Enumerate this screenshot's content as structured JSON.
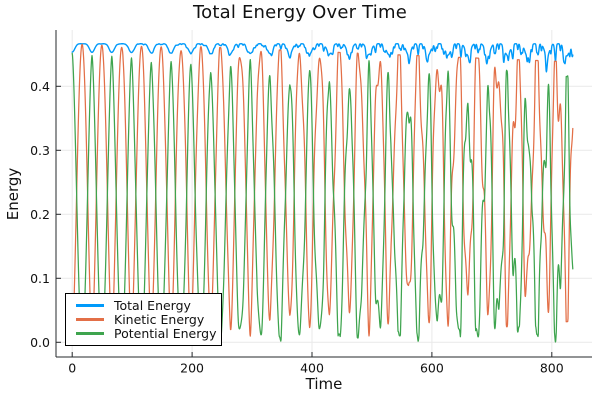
{
  "page": {
    "background": "#ffffff"
  },
  "chart_data": {
    "type": "line",
    "title": "Total Energy Over Time",
    "xlabel": "Time",
    "ylabel": "Energy",
    "xlim": [
      -27,
      867
    ],
    "ylim": [
      -0.023,
      0.488
    ],
    "xtick_labels": [
      "0",
      "200",
      "400",
      "600",
      "800"
    ],
    "xtick_values": [
      0,
      200,
      400,
      600,
      800
    ],
    "ytick_labels": [
      "0.0",
      "0.1",
      "0.2",
      "0.3",
      "0.4"
    ],
    "ytick_values": [
      0,
      0.1,
      0.2,
      0.3,
      0.4
    ],
    "grid": true,
    "legend": {
      "position": "bottom-left",
      "background": "#ffffff",
      "border_color": "#000000"
    },
    "style": {
      "background": "#ffffff",
      "axis_color": "#26282b",
      "grid_color": "#e9e9e9",
      "text_color": "#111111"
    },
    "series": [
      {
        "name": "Total Energy",
        "color": "#009AFA",
        "line_width": 1.4,
        "role": "total",
        "base": 0.4665,
        "dip_depth_start": 0.013,
        "dip_depth_end": 0.019,
        "dip_sharpness": 3
      },
      {
        "name": "Kinetic Energy",
        "color": "#E36F47",
        "line_width": 1.25,
        "role": "kinetic",
        "peak_start": 0.466,
        "peak_end": 0.434,
        "trough_start": 0.002,
        "trough_end": 0.068,
        "shape_exponent": 0.8
      },
      {
        "name": "Potential Energy",
        "color": "#3EA44E",
        "line_width": 1.25,
        "role": "potential_total_minus_kinetic"
      }
    ],
    "oscillation": {
      "t_start": 0,
      "t_end": 835,
      "sample_step": 0.5,
      "exchange_period": 33,
      "secondary_period": 14.3,
      "secondary_phase": 0.3,
      "tertiary_period": 7.9,
      "tertiary_phase": 1.1,
      "chaos_amplitude_end": 0.055,
      "chaos_growth_exponent": 1.5,
      "total_dip_phase": -0.6
    }
  }
}
